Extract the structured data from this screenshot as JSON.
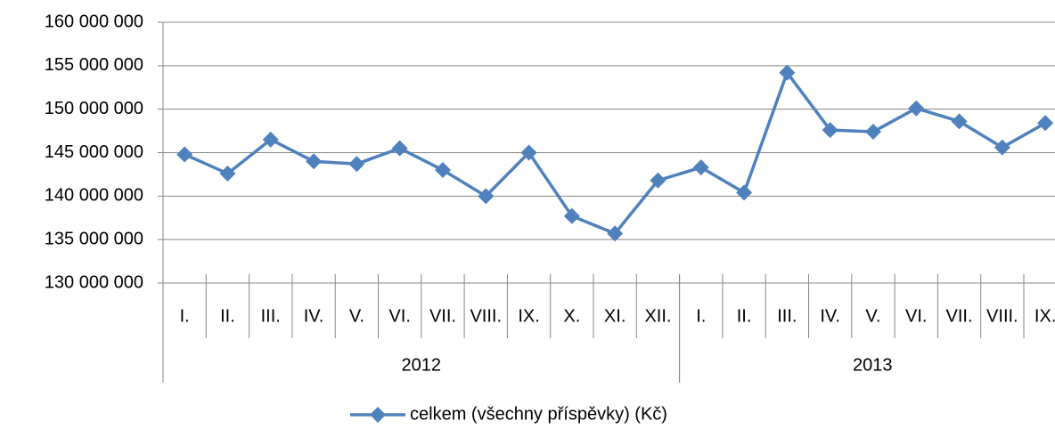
{
  "chart_data": {
    "type": "line",
    "groups": [
      {
        "name": "2012",
        "categories": [
          "I.",
          "II.",
          "III.",
          "IV.",
          "V.",
          "VI.",
          "VII.",
          "VIII.",
          "IX.",
          "X.",
          "XI.",
          "XII."
        ]
      },
      {
        "name": "2013",
        "categories": [
          "I.",
          "II.",
          "III.",
          "IV.",
          "V.",
          "VI.",
          "VII.",
          "VIII.",
          "IX."
        ]
      }
    ],
    "series": [
      {
        "name": "celkem (všechny příspěvky) (Kč)",
        "color": "#4f81bd",
        "values": [
          144800000,
          142600000,
          146500000,
          144000000,
          143700000,
          145500000,
          143000000,
          140000000,
          145000000,
          137700000,
          135700000,
          141800000,
          143300000,
          140400000,
          154200000,
          147600000,
          147400000,
          150100000,
          148600000,
          145600000,
          148400000
        ]
      }
    ],
    "ylim": [
      130000000,
      160000000
    ],
    "yticks": [
      {
        "value": 130000000,
        "label": "130 000 000"
      },
      {
        "value": 135000000,
        "label": "135 000 000"
      },
      {
        "value": 140000000,
        "label": "140 000 000"
      },
      {
        "value": 145000000,
        "label": "145 000 000"
      },
      {
        "value": 150000000,
        "label": "150 000 000"
      },
      {
        "value": 155000000,
        "label": "155 000 000"
      },
      {
        "value": 160000000,
        "label": "160 000 000"
      }
    ],
    "grid": true,
    "legend": "bottom"
  }
}
